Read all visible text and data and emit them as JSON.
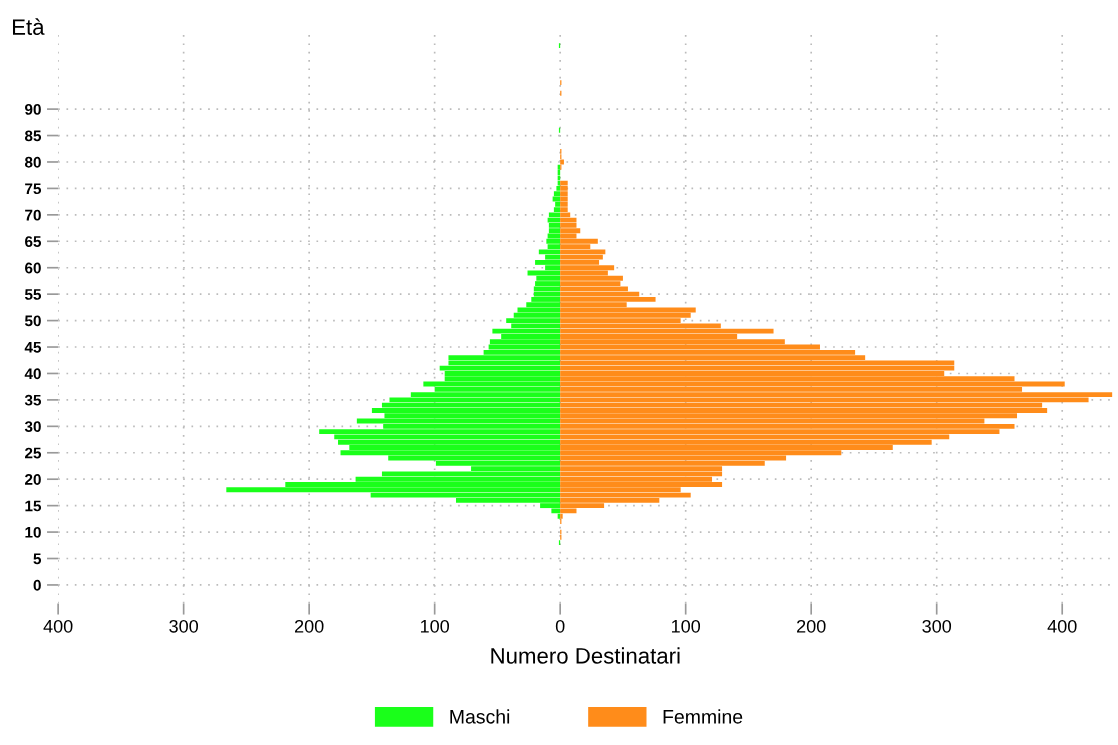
{
  "chart_data": {
    "type": "bar",
    "orientation": "horizontal",
    "stacked": true,
    "ylabel": "Età",
    "xlabel": "Numero Destinatari",
    "categories": [
      null,
      null,
      null,
      null,
      null,
      null,
      null,
      null,
      null,
      null,
      null,
      null,
      "90",
      null,
      null,
      null,
      null,
      "85",
      null,
      null,
      null,
      null,
      "80",
      null,
      null,
      null,
      null,
      "75",
      null,
      null,
      null,
      null,
      "70",
      null,
      null,
      null,
      null,
      "65",
      null,
      null,
      null,
      null,
      "60",
      null,
      null,
      null,
      null,
      "55",
      null,
      null,
      null,
      null,
      "50",
      null,
      null,
      null,
      null,
      "45",
      null,
      null,
      null,
      null,
      "40",
      null,
      null,
      null,
      null,
      "35",
      null,
      null,
      null,
      null,
      "30",
      null,
      null,
      null,
      null,
      "25",
      null,
      null,
      null,
      null,
      "20",
      null,
      null,
      null,
      null,
      "15",
      null,
      null,
      null,
      null,
      "10",
      null,
      null,
      null,
      null,
      "5",
      null,
      null,
      null,
      null,
      "0"
    ],
    "series": [
      {
        "name": "Maschi",
        "color": "#1aff1a",
        "values": [
          -1,
          0,
          0,
          0,
          0,
          0,
          0,
          0,
          0,
          0,
          0,
          0,
          0,
          0,
          0,
          0,
          -1,
          0,
          0,
          0,
          0,
          0,
          0,
          -2,
          -2,
          -2,
          -2,
          -3,
          -5,
          -6,
          -4,
          -5,
          -9,
          -10,
          -9,
          -9,
          -10,
          -11,
          -10,
          -17,
          -12,
          -20,
          -12,
          -26,
          -19,
          -20,
          -21,
          -21,
          -23,
          -27,
          -34,
          -37,
          -43,
          -39,
          -54,
          -47,
          -56,
          -57,
          -61,
          -89,
          -89,
          -96,
          -92,
          -92,
          -109,
          -100,
          -119,
          -136,
          -142,
          -150,
          -140,
          -162,
          -141,
          -192,
          -180,
          -177,
          -168,
          -175,
          -137,
          -99,
          -71,
          -142,
          -163,
          -219,
          -266,
          -151,
          -83,
          -16,
          -7,
          -2,
          0,
          0,
          0,
          0,
          -1,
          0,
          0,
          0,
          0,
          0,
          0,
          0,
          0
        ]
      },
      {
        "name": "Femmine",
        "color": "#ff8c1a",
        "values": [
          0,
          0,
          0,
          0,
          0,
          0,
          0,
          1,
          0,
          1,
          0,
          0,
          0,
          0,
          0,
          0,
          0,
          0,
          0,
          0,
          1,
          1,
          3,
          1,
          0,
          0,
          6,
          6,
          6,
          6,
          6,
          6,
          8,
          13,
          13,
          16,
          13,
          30,
          24,
          36,
          34,
          31,
          43,
          38,
          50,
          48,
          54,
          63,
          76,
          53,
          108,
          104,
          96,
          128,
          170,
          141,
          179,
          207,
          235,
          243,
          314,
          314,
          306,
          362,
          402,
          368,
          440,
          421,
          384,
          388,
          364,
          338,
          362,
          350,
          310,
          296,
          265,
          224,
          180,
          163,
          129,
          129,
          121,
          129,
          96,
          104,
          79,
          35,
          13,
          2,
          1,
          0,
          1,
          1,
          0,
          0,
          0,
          0,
          0,
          0,
          0,
          0,
          0
        ]
      }
    ],
    "xlim": [
      -400,
      440
    ],
    "xticks": [
      {
        "value": -400,
        "label": "400"
      },
      {
        "value": -300,
        "label": "300"
      },
      {
        "value": -200,
        "label": "200"
      },
      {
        "value": -100,
        "label": "100"
      },
      0,
      100,
      200,
      300,
      400
    ],
    "grid": true,
    "legend": "bottom"
  }
}
